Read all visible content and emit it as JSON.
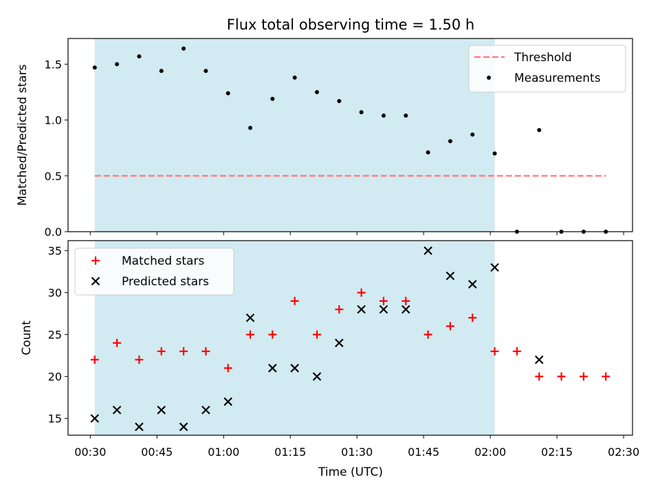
{
  "figure": {
    "title": "Flux total observing time = 1.50 h",
    "xlabel": "Time (UTC)",
    "x_ticks": [
      "00:30",
      "00:45",
      "01:00",
      "01:15",
      "01:30",
      "01:45",
      "02:00",
      "02:15",
      "02:30"
    ],
    "shade_color": "#add8e6",
    "shade_range": [
      "00:31",
      "02:01"
    ]
  },
  "chart_data": [
    {
      "type": "scatter",
      "ylabel": "Matched/Predicted stars",
      "ylim": [
        0,
        1.73
      ],
      "y_ticks": [
        "0.0",
        "0.5",
        "1.0",
        "1.5"
      ],
      "legend_position": "upper right",
      "threshold": {
        "name": "Threshold",
        "value": 0.5,
        "x_range": [
          "00:31",
          "02:26"
        ],
        "color": "#ff7777"
      },
      "series": [
        {
          "name": "Measurements",
          "color": "#000000",
          "x": [
            "00:31",
            "00:36",
            "00:41",
            "00:46",
            "00:51",
            "00:56",
            "01:01",
            "01:06",
            "01:11",
            "01:16",
            "01:21",
            "01:26",
            "01:31",
            "01:36",
            "01:41",
            "01:46",
            "01:51",
            "01:56",
            "02:01",
            "02:06",
            "02:11",
            "02:16",
            "02:21",
            "02:26"
          ],
          "y": [
            1.47,
            1.5,
            1.57,
            1.44,
            1.64,
            1.44,
            1.24,
            0.93,
            1.19,
            1.38,
            1.25,
            1.17,
            1.07,
            1.04,
            1.04,
            0.71,
            0.81,
            0.87,
            0.7,
            0.0,
            0.91,
            0.0,
            0.0,
            0.0
          ]
        }
      ]
    },
    {
      "type": "scatter",
      "ylabel": "Count",
      "ylim": [
        13,
        36.2
      ],
      "y_ticks": [
        "15",
        "20",
        "25",
        "30",
        "35"
      ],
      "legend_position": "upper left",
      "series": [
        {
          "name": "Matched stars",
          "marker": "+",
          "color": "#ff0000",
          "x": [
            "00:31",
            "00:36",
            "00:41",
            "00:46",
            "00:51",
            "00:56",
            "01:01",
            "01:06",
            "01:11",
            "01:16",
            "01:21",
            "01:26",
            "01:31",
            "01:36",
            "01:41",
            "01:46",
            "01:51",
            "01:56",
            "02:01",
            "02:06",
            "02:11",
            "02:16",
            "02:21",
            "02:26"
          ],
          "y": [
            22,
            24,
            22,
            23,
            23,
            23,
            21,
            25,
            25,
            29,
            25,
            28,
            30,
            29,
            29,
            25,
            26,
            27,
            23,
            23,
            20,
            20,
            20,
            20
          ]
        },
        {
          "name": "Predicted stars",
          "marker": "x",
          "color": "#000000",
          "x": [
            "00:31",
            "00:36",
            "00:41",
            "00:46",
            "00:51",
            "00:56",
            "01:01",
            "01:06",
            "01:11",
            "01:16",
            "01:21",
            "01:26",
            "01:31",
            "01:36",
            "01:41",
            "01:46",
            "01:51",
            "01:56",
            "02:01",
            "02:11"
          ],
          "y": [
            15,
            16,
            14,
            16,
            14,
            16,
            17,
            27,
            21,
            21,
            20,
            24,
            28,
            28,
            28,
            35,
            32,
            31,
            33,
            22
          ]
        }
      ]
    }
  ]
}
